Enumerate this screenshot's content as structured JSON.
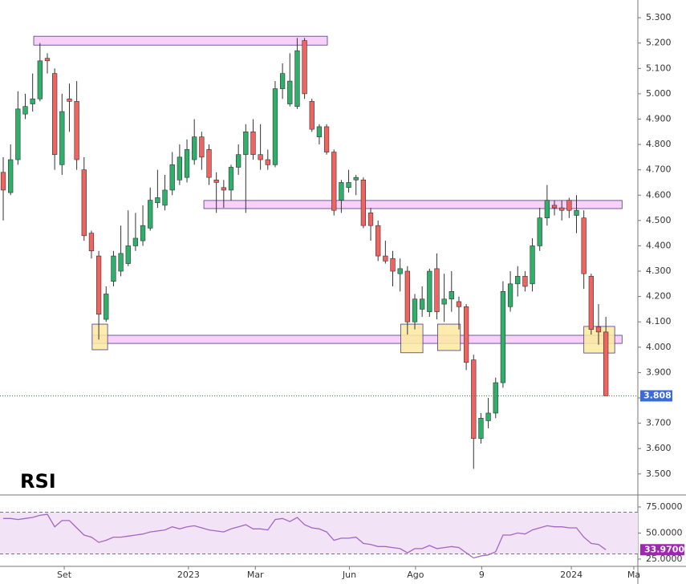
{
  "chart_data": [
    {
      "type": "candlestick",
      "open": [
        4.69,
        4.61,
        4.74,
        4.92,
        4.96,
        4.98,
        5.14,
        5.08,
        4.72,
        4.98,
        4.97,
        4.7,
        4.45,
        4.36,
        4.11,
        4.26,
        4.3,
        4.33,
        4.4,
        4.42,
        4.47,
        4.57,
        4.56,
        4.62,
        4.66,
        4.67,
        4.74,
        4.83,
        4.78,
        4.66,
        4.63,
        4.62,
        4.71,
        4.76,
        4.85,
        4.76,
        4.74,
        4.72,
        5.02,
        4.96,
        4.95,
        5.21,
        4.97,
        4.83,
        4.87,
        4.77,
        4.58,
        4.63,
        4.66,
        4.66,
        4.53,
        4.48,
        4.36,
        4.35,
        4.29,
        4.3,
        4.1,
        4.15,
        4.14,
        4.31,
        4.17,
        4.19,
        4.18,
        4.16,
        3.95,
        3.64,
        3.71,
        3.74,
        3.86,
        4.16,
        4.25,
        4.28,
        4.25,
        4.4,
        4.51,
        4.56,
        4.55,
        4.58,
        4.52,
        4.51,
        4.28,
        4.08,
        4.06
      ],
      "high": [
        4.75,
        4.8,
        5.01,
        5.0,
        5.08,
        5.2,
        5.16,
        5.1,
        5.0,
        5.04,
        5.05,
        4.75,
        4.46,
        4.38,
        4.24,
        4.38,
        4.48,
        4.54,
        4.53,
        4.56,
        4.63,
        4.7,
        4.68,
        4.77,
        4.8,
        4.82,
        4.9,
        4.85,
        4.8,
        4.69,
        4.66,
        4.72,
        4.8,
        4.88,
        4.9,
        4.88,
        4.78,
        5.05,
        5.12,
        5.16,
        5.22,
        5.22,
        4.98,
        4.88,
        4.88,
        4.78,
        4.66,
        4.7,
        4.68,
        4.67,
        4.55,
        4.5,
        4.42,
        4.38,
        4.35,
        4.32,
        4.21,
        4.24,
        4.31,
        4.37,
        4.29,
        4.3,
        4.2,
        4.17,
        3.97,
        3.74,
        3.8,
        3.88,
        4.26,
        4.3,
        4.32,
        4.3,
        4.43,
        4.55,
        4.64,
        4.58,
        4.58,
        4.59,
        4.6,
        4.54,
        4.29,
        4.17,
        4.12
      ],
      "low": [
        4.5,
        4.6,
        4.72,
        4.9,
        4.93,
        4.97,
        5.08,
        4.7,
        4.68,
        4.85,
        4.7,
        4.42,
        4.35,
        4.03,
        4.1,
        4.24,
        4.28,
        4.32,
        4.38,
        4.4,
        4.46,
        4.55,
        4.54,
        4.6,
        4.64,
        4.65,
        4.72,
        4.7,
        4.64,
        4.53,
        4.55,
        4.58,
        4.68,
        4.53,
        4.74,
        4.7,
        4.7,
        4.71,
        4.98,
        4.95,
        4.94,
        4.98,
        4.85,
        4.8,
        4.76,
        4.52,
        4.53,
        4.61,
        4.6,
        4.47,
        4.42,
        4.34,
        4.33,
        4.24,
        4.22,
        4.05,
        4.07,
        4.12,
        4.12,
        4.11,
        4.1,
        4.14,
        4.07,
        3.91,
        3.52,
        3.62,
        3.68,
        3.72,
        3.84,
        4.14,
        4.2,
        4.22,
        4.22,
        4.38,
        4.48,
        4.52,
        4.5,
        4.51,
        4.45,
        4.23,
        4.05,
        4.01,
        3.808
      ],
      "close": [
        4.62,
        4.74,
        4.94,
        4.95,
        4.98,
        5.13,
        5.13,
        4.76,
        4.93,
        4.97,
        4.74,
        4.44,
        4.38,
        4.13,
        4.21,
        4.36,
        4.37,
        4.4,
        4.43,
        4.48,
        4.58,
        4.59,
        4.62,
        4.72,
        4.75,
        4.78,
        4.83,
        4.75,
        4.67,
        4.65,
        4.62,
        4.71,
        4.76,
        4.85,
        4.76,
        4.74,
        4.72,
        5.02,
        5.08,
        5.05,
        5.17,
        5.0,
        4.86,
        4.87,
        4.77,
        4.54,
        4.65,
        4.65,
        4.67,
        4.48,
        4.48,
        4.36,
        4.34,
        4.3,
        4.31,
        4.1,
        4.19,
        4.19,
        4.3,
        4.14,
        4.19,
        4.22,
        4.16,
        3.94,
        3.64,
        3.72,
        3.74,
        3.86,
        4.22,
        4.25,
        4.28,
        4.24,
        4.4,
        4.51,
        4.58,
        4.55,
        4.54,
        4.54,
        4.54,
        4.29,
        4.07,
        4.06,
        3.808
      ],
      "up_color": "#2eaf6a",
      "down_color": "#ef6360",
      "xlim": [
        -0.44,
        86.35
      ],
      "xticks": [
        {
          "value": 8.3,
          "label": "Set"
        },
        {
          "value": 25.2,
          "label": "2023"
        },
        {
          "value": 34.3,
          "label": "Mar"
        },
        {
          "value": 47.1,
          "label": "Jun"
        },
        {
          "value": 56.1,
          "label": "Ago"
        },
        {
          "value": 65.1,
          "label": "9"
        },
        {
          "value": 77.3,
          "label": "2024"
        },
        {
          "value": 85.8,
          "label": "Ma"
        }
      ],
      "ylim": [
        3.417,
        5.37
      ],
      "yticks": [
        {
          "value": 3.5,
          "label": "3.500"
        },
        {
          "value": 3.6,
          "label": "3.600"
        },
        {
          "value": 3.7,
          "label": "3.700"
        },
        {
          "value": 3.8,
          "label": "3.800"
        },
        {
          "value": 3.9,
          "label": "3.900"
        },
        {
          "value": 4.0,
          "label": "4.000"
        },
        {
          "value": 4.1,
          "label": "4.100"
        },
        {
          "value": 4.2,
          "label": "4.200"
        },
        {
          "value": 4.3,
          "label": "4.300"
        },
        {
          "value": 4.4,
          "label": "4.400"
        },
        {
          "value": 4.5,
          "label": "4.500"
        },
        {
          "value": 4.6,
          "label": "4.600"
        },
        {
          "value": 4.7,
          "label": "4.700"
        },
        {
          "value": 4.8,
          "label": "4.800"
        },
        {
          "value": 4.9,
          "label": "4.900"
        },
        {
          "value": 5.0,
          "label": "5.000"
        },
        {
          "value": 5.1,
          "label": "5.100"
        },
        {
          "value": 5.2,
          "label": "5.200"
        },
        {
          "value": 5.3,
          "label": "5.300"
        }
      ],
      "last_price": 3.808,
      "zones": [
        {
          "x": [
            4.15,
            44.1
          ],
          "y": [
            5.192,
            5.227
          ],
          "color": "#f7c8f7"
        },
        {
          "x": [
            27.3,
            84.2
          ],
          "y": [
            4.547,
            4.579
          ],
          "color": "#f7c8f7"
        },
        {
          "x": [
            12.1,
            84.2
          ],
          "y": [
            4.015,
            4.047
          ],
          "color": "#f7c8f7"
        },
        {
          "x": [
            12.1,
            14.2
          ],
          "y": [
            3.99,
            4.091
          ],
          "color": "#fbeaa0"
        },
        {
          "x": [
            54.1,
            57.1
          ],
          "y": [
            3.978,
            4.091
          ],
          "color": "#fbeaa0"
        },
        {
          "x": [
            59.1,
            62.2
          ],
          "y": [
            3.987,
            4.091
          ],
          "color": "#fbeaa0"
        },
        {
          "x": [
            79.0,
            83.2
          ],
          "y": [
            3.977,
            4.082
          ],
          "color": "#fbeaa0"
        }
      ]
    },
    {
      "type": "line",
      "title": "RSI",
      "color": "#a366c4",
      "values": [
        64,
        64,
        63,
        64,
        65,
        67,
        68,
        56,
        62,
        62,
        55,
        48,
        46,
        41,
        43,
        46,
        46,
        47,
        48,
        49,
        51,
        52,
        53,
        56,
        54,
        56,
        57,
        55,
        53,
        52,
        51,
        54,
        56,
        58,
        54,
        54,
        53,
        63,
        64,
        61,
        65,
        58,
        55,
        54,
        51,
        43,
        45,
        45,
        46,
        40,
        39,
        37,
        37,
        36,
        35,
        31,
        35,
        35,
        38,
        35,
        36,
        37,
        36,
        31,
        26,
        28,
        29,
        32,
        48,
        48,
        50,
        49,
        53,
        55,
        57,
        56,
        56,
        55,
        55,
        46,
        40,
        39,
        33.97
      ],
      "value_labels": [
        null,
        null,
        null,
        null,
        null,
        null,
        null,
        null,
        null,
        null,
        null,
        null,
        null,
        null,
        null,
        null,
        null,
        null,
        null,
        null,
        null,
        null,
        null,
        null,
        null,
        null,
        null,
        null,
        null,
        null,
        null,
        null,
        null,
        null,
        null,
        null,
        null,
        null,
        null,
        null,
        null,
        null,
        null,
        null,
        null,
        null,
        null,
        null,
        null,
        null,
        null,
        null,
        null,
        null,
        null,
        null,
        null,
        null,
        null,
        null,
        null,
        null,
        null,
        null,
        null,
        null,
        null,
        null,
        null,
        null,
        null,
        null,
        null,
        null,
        null,
        null,
        null,
        null,
        null,
        null,
        null,
        null,
        "33.9700"
      ],
      "levels": [
        70,
        30
      ],
      "ylim": [
        18.8,
        84.2
      ],
      "yticks": [
        {
          "value": 25,
          "label": "25.0000"
        },
        {
          "value": 50,
          "label": "50.0000"
        },
        {
          "value": 75,
          "label": "75.0000"
        }
      ]
    }
  ]
}
